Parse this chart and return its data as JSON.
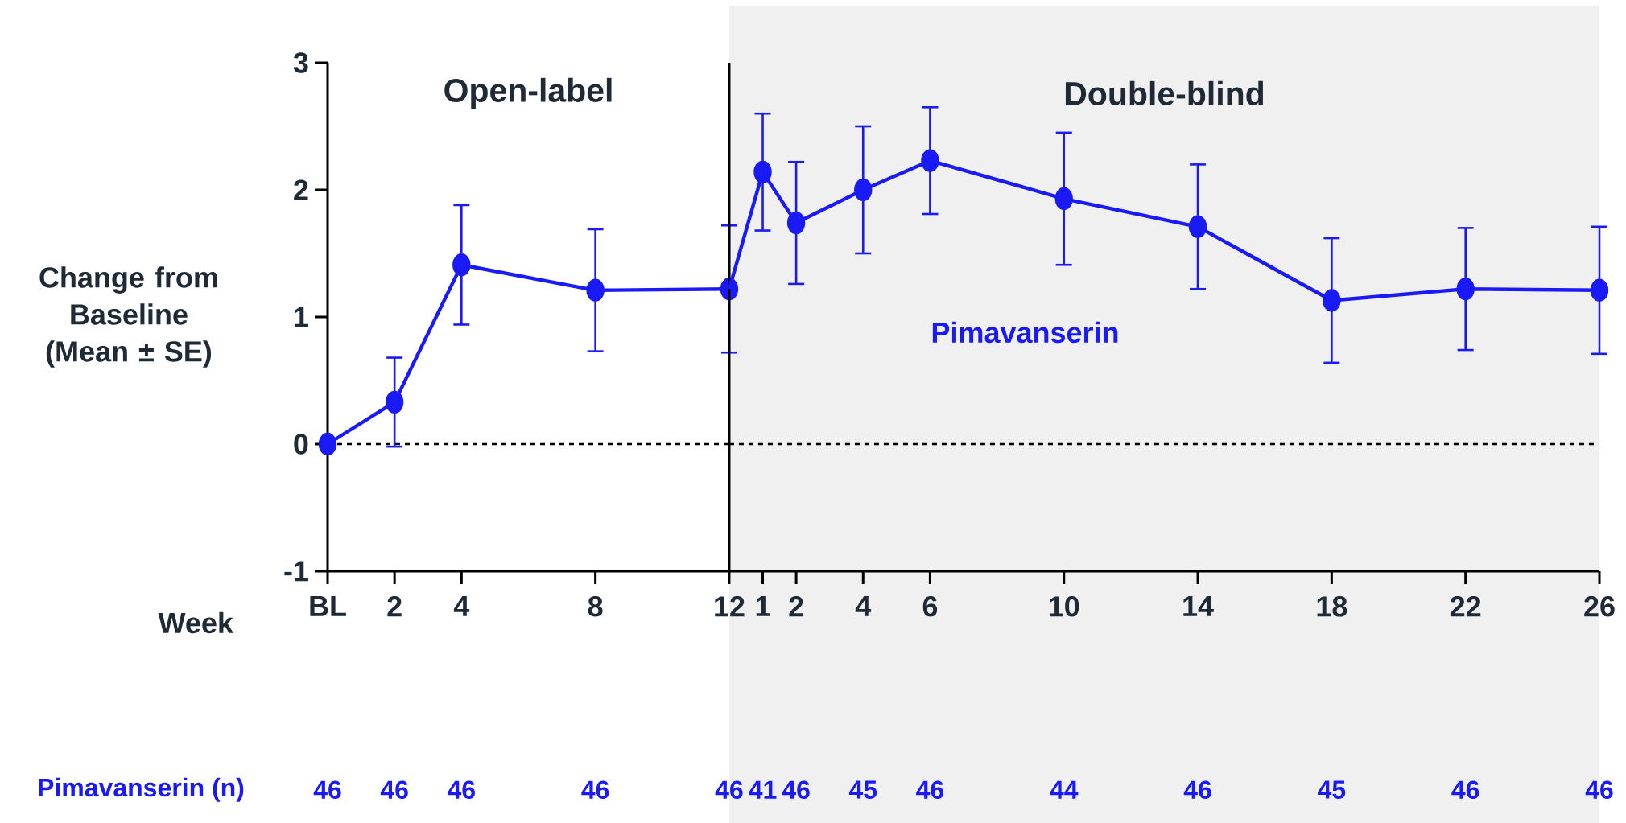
{
  "chart_data": [
    {
      "type": "line",
      "xlabel": "Week",
      "ylabel": "Change from Baseline (Mean ± SE)",
      "x": [
        0,
        2,
        4,
        8,
        12
      ],
      "series": [
        {
          "color": "#1a1af5",
          "values": [
            0,
            0.33,
            1.41,
            1.21,
            1.22
          ],
          "errors": [
            null,
            0.35,
            0.47,
            0.48,
            0.5
          ]
        }
      ],
      "xlim": [
        0,
        12
      ],
      "ylim": [
        -1,
        3
      ],
      "yticks": [
        -1,
        0,
        1,
        2,
        3
      ],
      "xticks": [
        {
          "value": 0,
          "label": "BL"
        },
        2,
        4,
        8,
        12
      ],
      "marker": "circle",
      "line_style": "solid",
      "ref_lines": [
        {
          "axis": "y",
          "value": 0,
          "line_style": "dashed",
          "color": "#000000"
        }
      ],
      "annotations": [
        "Open-label",
        "Pimavanserin (n)",
        "46",
        "46",
        "46",
        "46",
        "46"
      ]
    },
    {
      "type": "line",
      "x": [
        1,
        2,
        4,
        6,
        10,
        14,
        18,
        22,
        26
      ],
      "series": [
        {
          "name": "Pimavanserin",
          "color": "#1a1af5",
          "values": [
            2.14,
            1.74,
            2.0,
            2.23,
            1.93,
            1.71,
            1.13,
            1.22,
            1.21
          ],
          "errors": [
            0.46,
            0.48,
            0.5,
            0.42,
            0.52,
            0.49,
            0.49,
            0.48,
            0.5
          ]
        }
      ],
      "xlim": [
        0,
        26
      ],
      "ylim": [
        -1,
        3
      ],
      "xticks": [
        1,
        2,
        4,
        6,
        10,
        14,
        18,
        22,
        26
      ],
      "tick_labels": "x",
      "marker": "circle",
      "line_style": "solid",
      "ref_lines": [
        {
          "axis": "y",
          "value": 0,
          "line_style": "dashed",
          "color": "#000000"
        }
      ],
      "bands": [
        {
          "axis": "x",
          "from": 0,
          "to": 26,
          "color": "#f0f0f0"
        }
      ],
      "annotations": [
        "Double-blind",
        "41",
        "46",
        "45",
        "46",
        "44",
        "46",
        "45",
        "46",
        "46"
      ]
    }
  ]
}
